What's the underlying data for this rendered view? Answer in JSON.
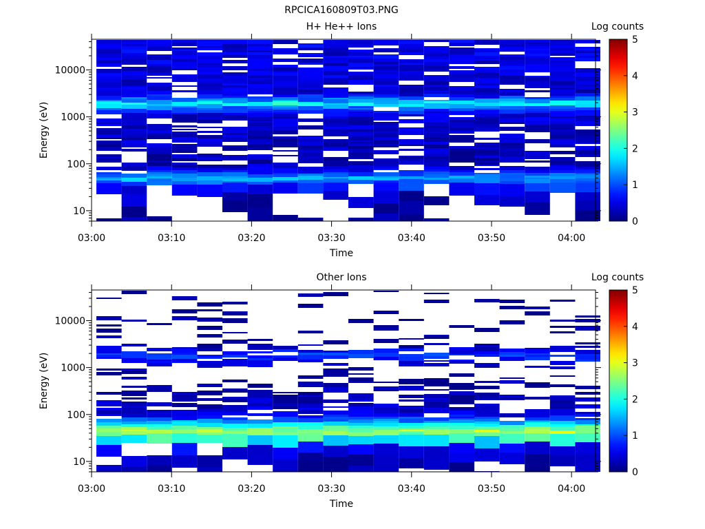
{
  "figure": {
    "filename": "RPCICA160809T03.PNG"
  },
  "chart_data": [
    {
      "type": "heatmap",
      "title": "H+ He++ Ions",
      "xlabel": "Time",
      "ylabel": "Energy (eV)",
      "y_scale": "log",
      "ylim": [
        6,
        45000
      ],
      "xlim": [
        "03:00",
        "04:03"
      ],
      "x_ticks": [
        "03:00",
        "03:10",
        "03:20",
        "03:30",
        "03:40",
        "03:50",
        "04:00"
      ],
      "y_ticks": [
        "10",
        "100",
        "1000",
        "10000"
      ],
      "colorbar": {
        "label": "Log counts",
        "range": [
          0,
          5
        ],
        "ticks": [
          "0",
          "1",
          "2",
          "3",
          "4",
          "5"
        ],
        "colormap": "jet"
      },
      "time_bins": [
        "03:00",
        "03:03",
        "03:06",
        "03:10",
        "03:13",
        "03:16",
        "03:19",
        "03:22",
        "03:25",
        "03:29",
        "03:32",
        "03:35",
        "03:38",
        "03:41",
        "03:45",
        "03:48",
        "03:51",
        "03:54",
        "03:57",
        "04:00"
      ],
      "band_profile": [
        {
          "energy_eV": 9,
          "log_counts": 0.1,
          "fill": 0.5
        },
        {
          "energy_eV": 15,
          "log_counts": 0.2,
          "fill": 0.55
        },
        {
          "energy_eV": 25,
          "log_counts": 0.3,
          "fill": 0.6
        },
        {
          "energy_eV": 35,
          "log_counts": 0.8,
          "fill": 0.9
        },
        {
          "energy_eV": 45,
          "log_counts": 1.5,
          "fill": 1.0
        },
        {
          "energy_eV": 55,
          "log_counts": 1.1,
          "fill": 1.0
        },
        {
          "energy_eV": 70,
          "log_counts": 0.5,
          "fill": 0.85
        },
        {
          "energy_eV": 100,
          "log_counts": 0.2,
          "fill": 0.7
        },
        {
          "energy_eV": 200,
          "log_counts": 0.3,
          "fill": 0.8
        },
        {
          "energy_eV": 500,
          "log_counts": 0.35,
          "fill": 0.8
        },
        {
          "energy_eV": 1000,
          "log_counts": 0.4,
          "fill": 0.85
        },
        {
          "energy_eV": 1500,
          "log_counts": 1.2,
          "fill": 1.0
        },
        {
          "energy_eV": 1800,
          "log_counts": 2.0,
          "fill": 1.0
        },
        {
          "energy_eV": 2100,
          "log_counts": 1.3,
          "fill": 1.0
        },
        {
          "energy_eV": 3000,
          "log_counts": 0.4,
          "fill": 0.85
        },
        {
          "energy_eV": 10000,
          "log_counts": 0.45,
          "fill": 0.85
        },
        {
          "energy_eV": 30000,
          "log_counts": 0.5,
          "fill": 0.9
        }
      ]
    },
    {
      "type": "heatmap",
      "title": "Other Ions",
      "xlabel": "Time",
      "ylabel": "Energy (eV)",
      "y_scale": "log",
      "ylim": [
        6,
        45000
      ],
      "xlim": [
        "03:00",
        "04:03"
      ],
      "x_ticks": [
        "03:00",
        "03:10",
        "03:20",
        "03:30",
        "03:40",
        "03:50",
        "04:00"
      ],
      "y_ticks": [
        "10",
        "100",
        "1000",
        "10000"
      ],
      "colorbar": {
        "label": "Log counts",
        "range": [
          0,
          5
        ],
        "ticks": [
          "0",
          "1",
          "2",
          "3",
          "4",
          "5"
        ],
        "colormap": "jet"
      },
      "time_bins": [
        "03:00",
        "03:03",
        "03:06",
        "03:10",
        "03:13",
        "03:16",
        "03:19",
        "03:22",
        "03:25",
        "03:29",
        "03:32",
        "03:35",
        "03:38",
        "03:41",
        "03:45",
        "03:48",
        "03:51",
        "03:54",
        "03:57",
        "04:00"
      ],
      "band_profile": [
        {
          "energy_eV": 9,
          "log_counts": 0.2,
          "fill": 0.6
        },
        {
          "energy_eV": 15,
          "log_counts": 0.3,
          "fill": 0.65
        },
        {
          "energy_eV": 25,
          "log_counts": 0.6,
          "fill": 0.9
        },
        {
          "energy_eV": 32,
          "log_counts": 1.8,
          "fill": 1.0
        },
        {
          "energy_eV": 40,
          "log_counts": 2.8,
          "fill": 1.0
        },
        {
          "energy_eV": 50,
          "log_counts": 2.3,
          "fill": 1.0
        },
        {
          "energy_eV": 65,
          "log_counts": 1.4,
          "fill": 1.0
        },
        {
          "energy_eV": 90,
          "log_counts": 0.5,
          "fill": 0.9
        },
        {
          "energy_eV": 150,
          "log_counts": 0.3,
          "fill": 0.75
        },
        {
          "energy_eV": 300,
          "log_counts": 0.2,
          "fill": 0.45
        },
        {
          "energy_eV": 700,
          "log_counts": 0.1,
          "fill": 0.2
        },
        {
          "energy_eV": 1700,
          "log_counts": 0.9,
          "fill": 0.95
        },
        {
          "energy_eV": 3000,
          "log_counts": 0.1,
          "fill": 0.25
        },
        {
          "energy_eV": 10000,
          "log_counts": 0.1,
          "fill": 0.15
        },
        {
          "energy_eV": 30000,
          "log_counts": 0.1,
          "fill": 0.15
        }
      ]
    }
  ]
}
